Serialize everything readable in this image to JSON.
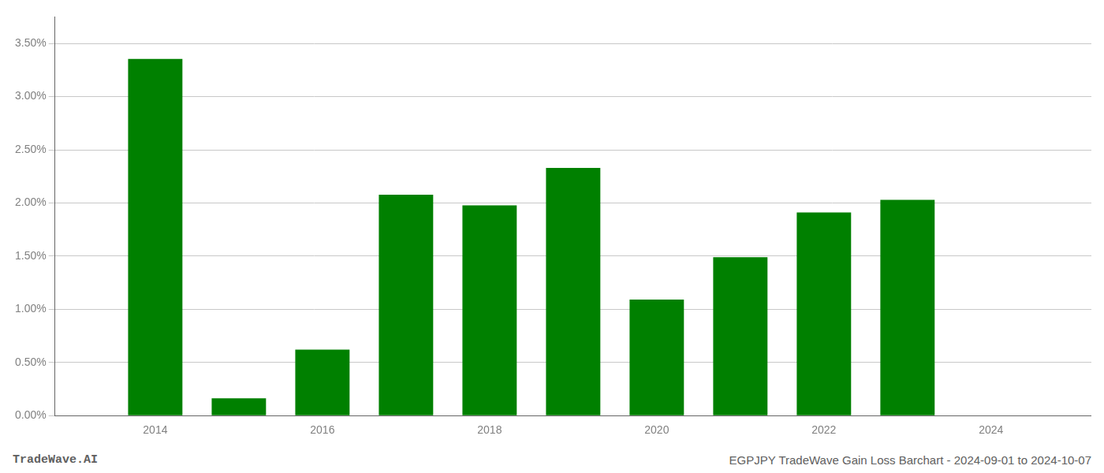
{
  "chart_data": {
    "type": "bar",
    "x": [
      2014,
      2015,
      2016,
      2017,
      2018,
      2019,
      2020,
      2021,
      2022,
      2023
    ],
    "values": [
      0.03355,
      0.00162,
      0.0062,
      0.02078,
      0.01978,
      0.0233,
      0.01092,
      0.0149,
      0.0191,
      0.0203
    ],
    "color": "#008000",
    "xlim": [
      2012.8,
      2025.2
    ],
    "xticks": [
      2014,
      2016,
      2018,
      2020,
      2022,
      2024
    ],
    "ylim": [
      0,
      0.0375
    ],
    "yticks": [
      {
        "value": 0.0,
        "label": "0.00%"
      },
      {
        "value": 0.005,
        "label": "0.50%"
      },
      {
        "value": 0.01,
        "label": "1.00%"
      },
      {
        "value": 0.015,
        "label": "1.50%"
      },
      {
        "value": 0.02,
        "label": "2.00%"
      },
      {
        "value": 0.025,
        "label": "2.50%"
      },
      {
        "value": 0.03,
        "label": "3.00%"
      },
      {
        "value": 0.035,
        "label": "3.50%"
      }
    ],
    "grid": "y",
    "annotations": [
      "TradeWave.AI",
      "EGPJPY TradeWave Gain Loss Barchart - 2024-09-01 to 2024-10-07"
    ]
  }
}
